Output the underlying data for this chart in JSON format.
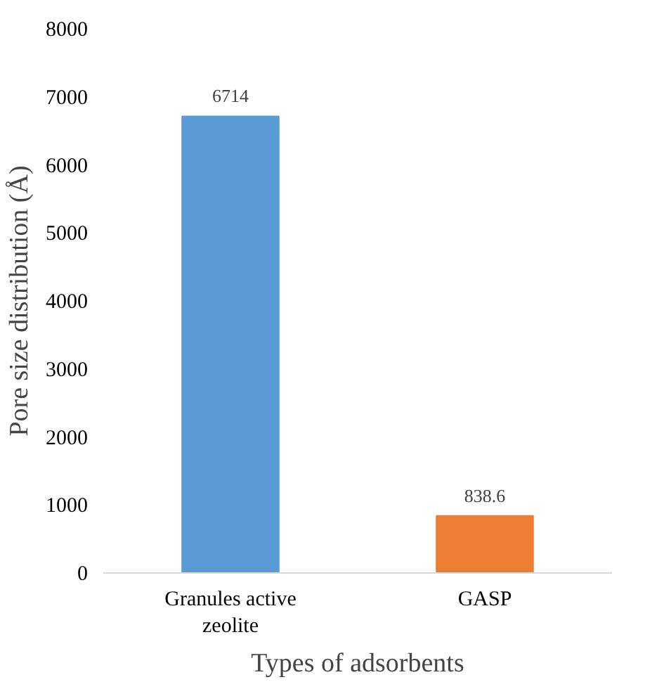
{
  "chart_data": {
    "type": "bar",
    "categories": [
      "Granules active zeolite",
      "GASP"
    ],
    "values": [
      6714,
      838.6
    ],
    "colors": [
      "#5b9bd5",
      "#ed7d31"
    ],
    "ylim": [
      0,
      8000
    ],
    "yticks": [
      0,
      1000,
      2000,
      3000,
      4000,
      5000,
      6000,
      7000,
      8000
    ],
    "xlabel": "Types of adsorbents",
    "ylabel": "Pore size distribution (Å)",
    "data_labels": true
  }
}
